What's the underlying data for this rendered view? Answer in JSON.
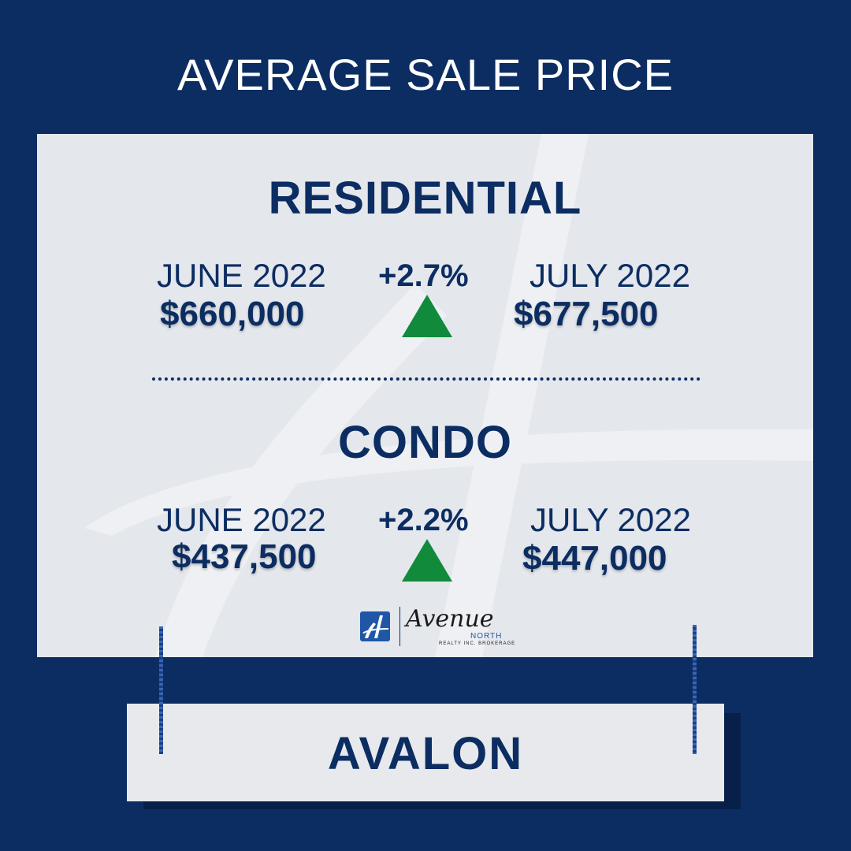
{
  "title": "AVERAGE SALE PRICE",
  "colors": {
    "background": "#0c2d62",
    "panel": "#e4e7ec",
    "accent_up": "#118a3b",
    "text": "#0c2d62"
  },
  "residential": {
    "title": "RESIDENTIAL",
    "from_month": "JUNE 2022",
    "from_price": "$660,000",
    "change": "+2.7%",
    "direction_icon": "triangle-up-icon",
    "to_month": "JULY 2022",
    "to_price": "$677,500"
  },
  "condo": {
    "title": "CONDO",
    "from_month": "JUNE 2022",
    "from_price": "$437,500",
    "change": "+2.2%",
    "direction_icon": "triangle-up-icon",
    "to_month": "JULY 2022",
    "to_price": "$447,000"
  },
  "logo": {
    "word": "Avenue",
    "north": "NORTH",
    "sub": "REALTY INC. BROKERAGE"
  },
  "sign": {
    "label": "AVALON"
  }
}
